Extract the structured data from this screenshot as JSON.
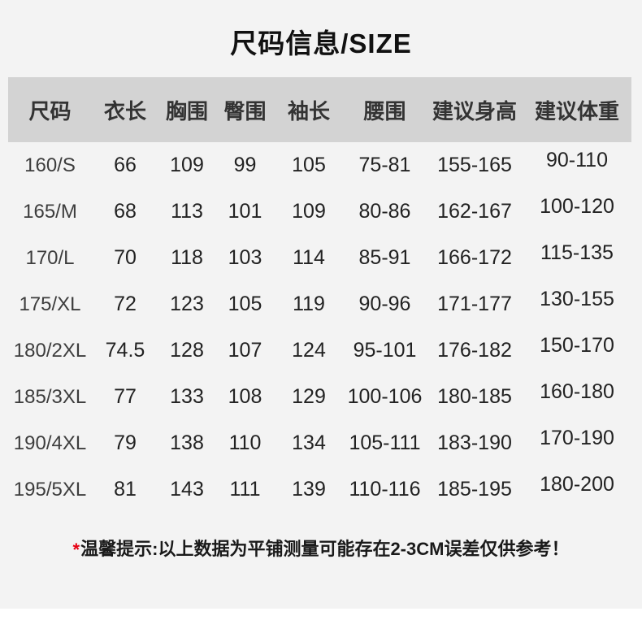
{
  "page": {
    "title": "尺码信息/SIZE",
    "note": {
      "asterisk": "*",
      "label": "温馨提示:",
      "text": "以上数据为平铺测量可能存在2-3CM误差仅供参考！"
    },
    "colors": {
      "page_bg": "#f3f3f3",
      "header_bg": "#d3d3d3",
      "body_text": "#222222",
      "note_asterisk": "#e60012"
    }
  },
  "table": {
    "headers": [
      "尺码",
      "衣长",
      "胸围",
      "臀围",
      "袖长",
      "腰围",
      "建议身高",
      "建议体重"
    ],
    "rows": [
      [
        "160/S",
        "66",
        "109",
        "99",
        "105",
        "75-81",
        "155-165",
        "90-110"
      ],
      [
        "165/M",
        "68",
        "113",
        "101",
        "109",
        "80-86",
        "162-167",
        "100-120"
      ],
      [
        "170/L",
        "70",
        "118",
        "103",
        "114",
        "85-91",
        "166-172",
        "115-135"
      ],
      [
        "175/XL",
        "72",
        "123",
        "105",
        "119",
        "90-96",
        "171-177",
        "130-155"
      ],
      [
        "180/2XL",
        "74.5",
        "128",
        "107",
        "124",
        "95-101",
        "176-182",
        "150-170"
      ],
      [
        "185/3XL",
        "77",
        "133",
        "108",
        "129",
        "100-106",
        "180-185",
        "160-180"
      ],
      [
        "190/4XL",
        "79",
        "138",
        "110",
        "134",
        "105-111",
        "183-190",
        "170-190"
      ],
      [
        "195/5XL",
        "81",
        "143",
        "111",
        "139",
        "110-116",
        "185-195",
        "180-200"
      ]
    ]
  }
}
